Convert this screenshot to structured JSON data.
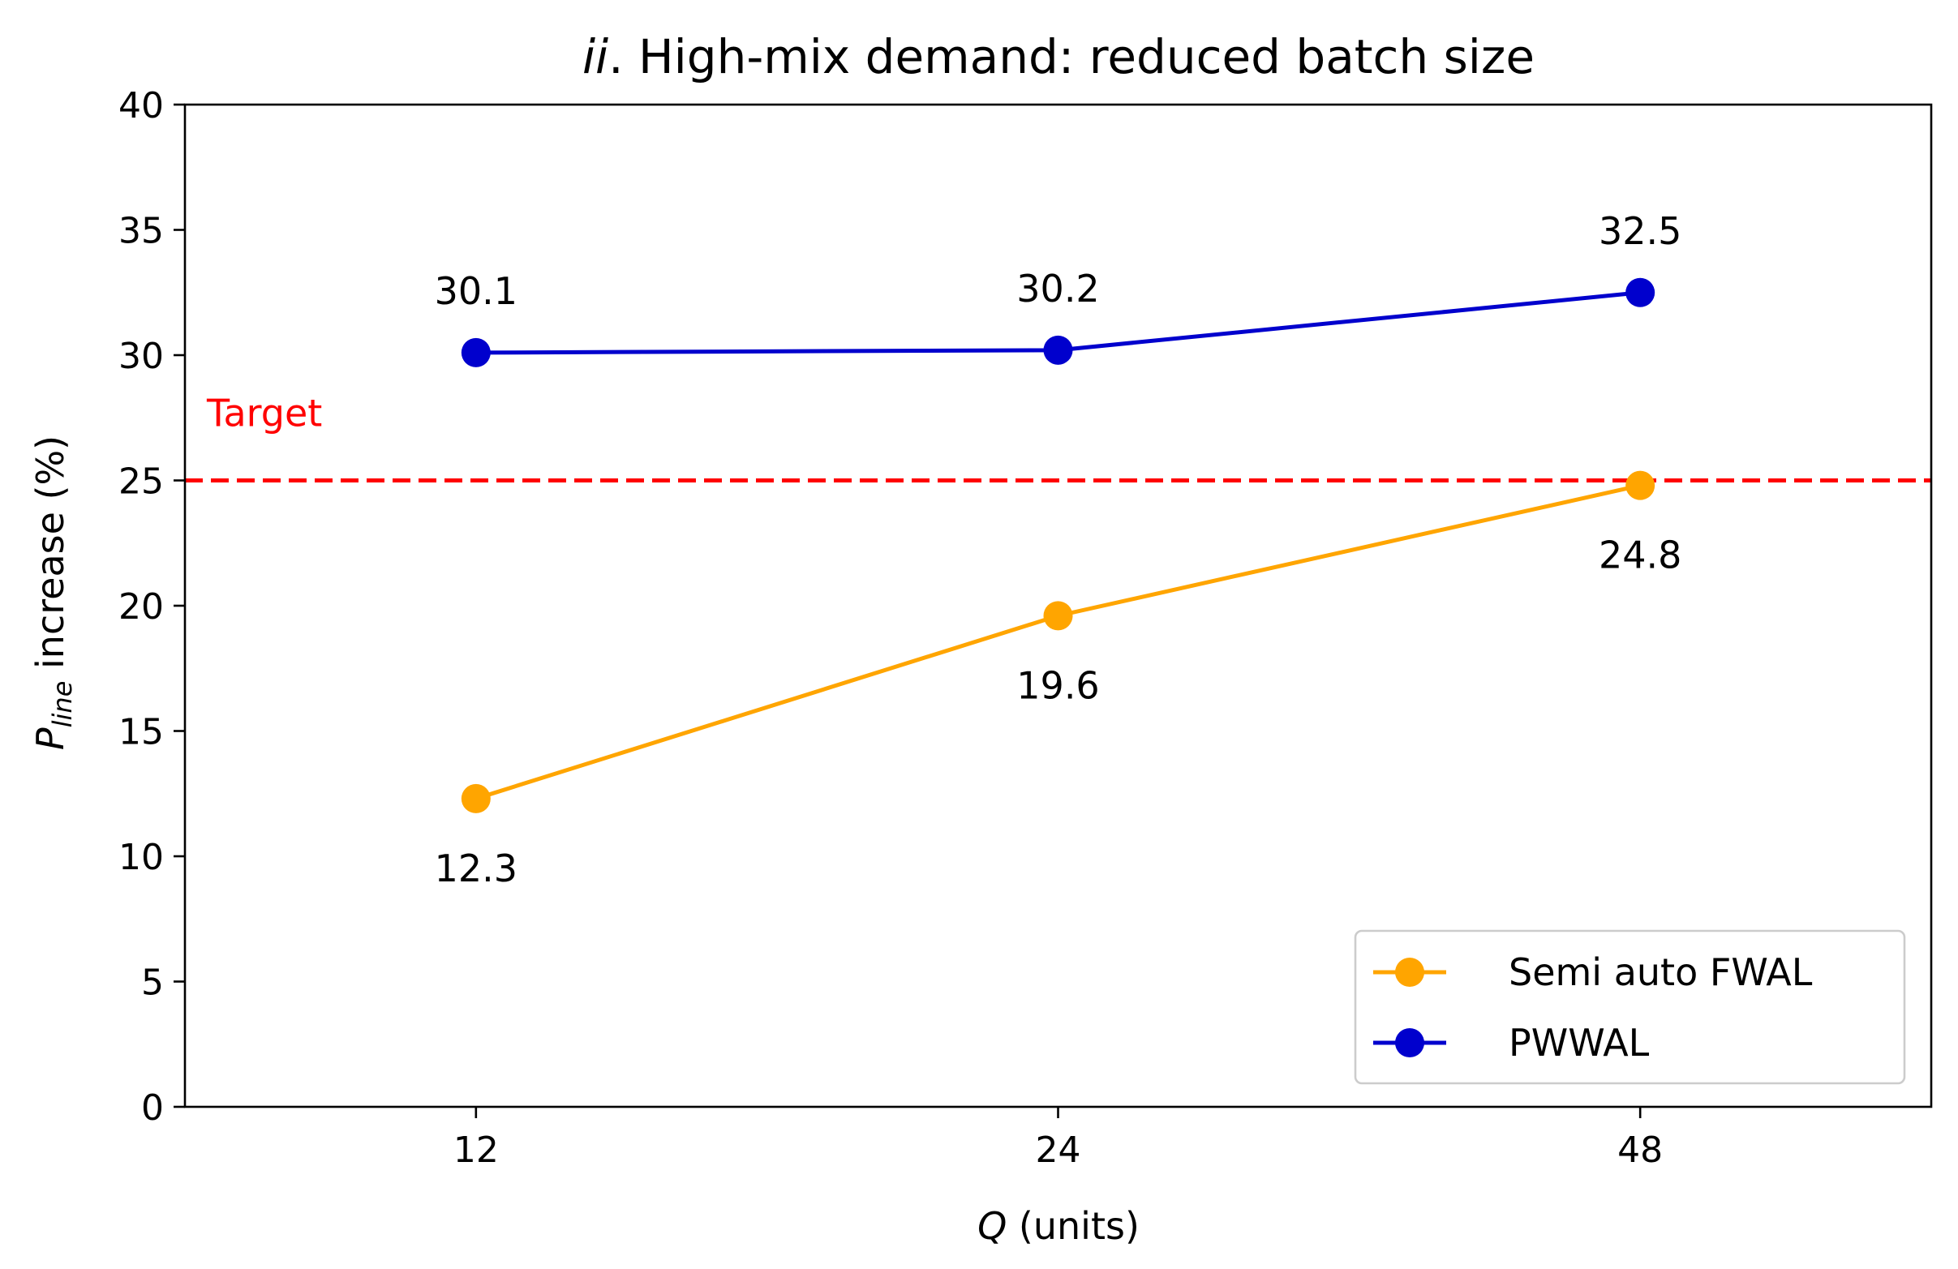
{
  "chart_data": {
    "type": "line",
    "title_italic": "ii",
    "title_rest": ". High-mix demand: reduced batch size",
    "xlabel_italic": "Q",
    "xlabel_rest": " (units)",
    "ylabel_main": "P",
    "ylabel_sub": "line",
    "ylabel_rest": " increase (%)",
    "categories": [
      "12",
      "24",
      "48"
    ],
    "ylim": [
      0,
      40
    ],
    "yticks": [
      0,
      5,
      10,
      15,
      20,
      25,
      30,
      35,
      40
    ],
    "xlim": [
      -0.5,
      2.5
    ],
    "series": [
      {
        "name": "Semi auto FWAL",
        "color": "#FFA500",
        "values": [
          12.3,
          19.6,
          24.8
        ],
        "labels": [
          "12.3",
          "19.6",
          "24.8"
        ],
        "label_position": "below"
      },
      {
        "name": "PWWAL",
        "color": "#0000CD",
        "values": [
          30.1,
          30.2,
          32.5
        ],
        "labels": [
          "30.1",
          "30.2",
          "32.5"
        ],
        "label_position": "above"
      }
    ],
    "reference_line": {
      "value": 25,
      "label": "Target",
      "color": "#FF0000",
      "style": "dashed"
    },
    "legend_position": "lower-right",
    "grid": false
  }
}
